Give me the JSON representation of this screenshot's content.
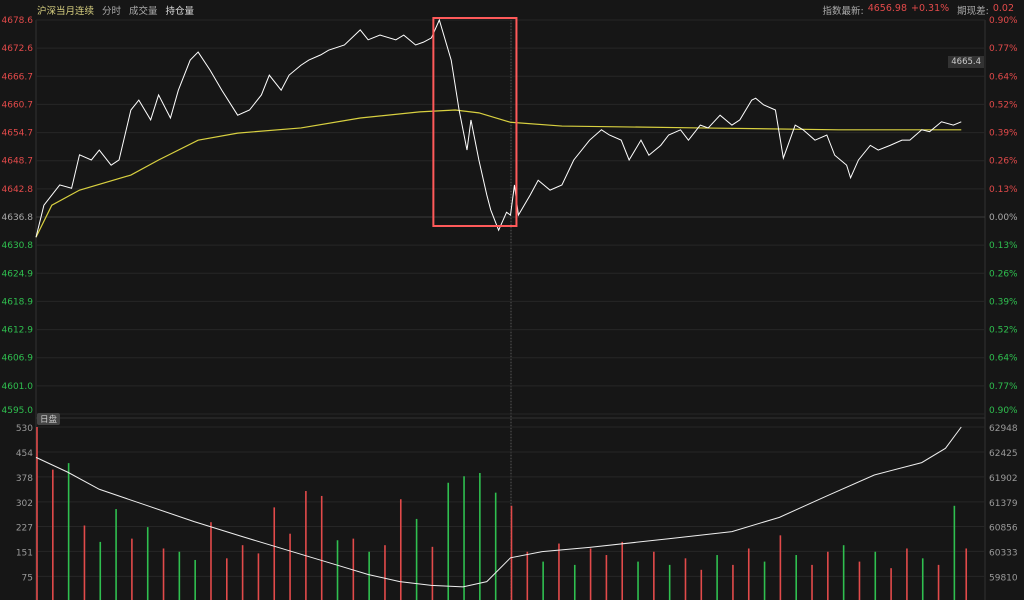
{
  "header": {
    "symbol": "沪深当月连续",
    "tabs": [
      "分时",
      "成交量",
      "持仓量"
    ],
    "active_tab": 2
  },
  "info": {
    "index_label": "指数最新:",
    "index_value": "4656.98",
    "index_change": "+0.31%",
    "basis_label": "期现差:",
    "basis_value": "0.02"
  },
  "crosshair_value": "4665.4",
  "session_tag": "日盘",
  "colors": {
    "up": "#e24a4a",
    "down": "#2fbf4f",
    "price": "#ffffff",
    "avg": "#d8d040",
    "highlight": "#ff5a5a"
  },
  "chart_data": [
    {
      "type": "line",
      "title": "",
      "ylim": [
        4595.0,
        4678.6
      ],
      "prev_close": 4636.8,
      "xlim": [
        0,
        240
      ],
      "left_ticks": [
        "4678.6",
        "4672.6",
        "4666.7",
        "4660.7",
        "4654.7",
        "4648.7",
        "4642.8",
        "4636.8",
        "4630.8",
        "4624.9",
        "4618.9",
        "4612.9",
        "4606.9",
        "4601.0",
        "4595.0"
      ],
      "right_ticks": [
        "0.90%",
        "0.77%",
        "0.64%",
        "0.52%",
        "0.39%",
        "0.26%",
        "0.13%",
        "0.00%",
        "0.13%",
        "0.26%",
        "0.39%",
        "0.52%",
        "0.64%",
        "0.77%",
        "0.90%"
      ],
      "series": [
        {
          "kind": "price",
          "points": [
            [
              0,
              4632.5
            ],
            [
              2,
              4639.3
            ],
            [
              6,
              4643.6
            ],
            [
              9,
              4642.9
            ],
            [
              11,
              4650.0
            ],
            [
              14,
              4648.9
            ],
            [
              16,
              4651.0
            ],
            [
              19,
              4647.8
            ],
            [
              21,
              4648.9
            ],
            [
              24,
              4659.5
            ],
            [
              26,
              4661.6
            ],
            [
              29,
              4657.4
            ],
            [
              31,
              4662.7
            ],
            [
              34,
              4657.8
            ],
            [
              36,
              4663.7
            ],
            [
              39,
              4670.1
            ],
            [
              41,
              4671.8
            ],
            [
              44,
              4668.0
            ],
            [
              47,
              4663.7
            ],
            [
              51,
              4658.4
            ],
            [
              54,
              4659.5
            ],
            [
              57,
              4662.7
            ],
            [
              59,
              4666.9
            ],
            [
              62,
              4663.7
            ],
            [
              64,
              4666.9
            ],
            [
              67,
              4669.0
            ],
            [
              69,
              4670.1
            ],
            [
              72,
              4671.2
            ],
            [
              74,
              4672.2
            ],
            [
              78,
              4673.3
            ],
            [
              82,
              4676.5
            ],
            [
              84,
              4674.4
            ],
            [
              87,
              4675.4
            ],
            [
              91,
              4674.4
            ],
            [
              93,
              4675.4
            ],
            [
              96,
              4673.3
            ],
            [
              98,
              4673.9
            ],
            [
              100,
              4674.8
            ],
            [
              102,
              4678.6
            ],
            [
              105,
              4670.1
            ],
            [
              107,
              4659.5
            ],
            [
              109,
              4651.0
            ],
            [
              110,
              4657.4
            ],
            [
              112,
              4648.9
            ],
            [
              114,
              4641.5
            ],
            [
              115,
              4638.3
            ],
            [
              117,
              4634.0
            ],
            [
              119,
              4637.8
            ],
            [
              120,
              4637.2
            ],
            [
              121,
              4643.6
            ],
            [
              122,
              4637.2
            ],
            [
              125,
              4641.5
            ],
            [
              127,
              4644.6
            ],
            [
              130,
              4642.5
            ],
            [
              133,
              4643.6
            ],
            [
              136,
              4648.9
            ],
            [
              140,
              4653.1
            ],
            [
              143,
              4655.3
            ],
            [
              145,
              4654.2
            ],
            [
              148,
              4653.1
            ],
            [
              150,
              4648.9
            ],
            [
              153,
              4653.1
            ],
            [
              155,
              4649.9
            ],
            [
              158,
              4652.0
            ],
            [
              160,
              4654.2
            ],
            [
              163,
              4655.3
            ],
            [
              165,
              4653.1
            ],
            [
              168,
              4656.3
            ],
            [
              170,
              4655.7
            ],
            [
              173,
              4658.4
            ],
            [
              176,
              4656.3
            ],
            [
              178,
              4657.4
            ],
            [
              181,
              4661.6
            ],
            [
              182,
              4662.0
            ],
            [
              184,
              4660.6
            ],
            [
              187,
              4659.5
            ],
            [
              189,
              4649.3
            ],
            [
              192,
              4656.3
            ],
            [
              194,
              4655.3
            ],
            [
              197,
              4653.1
            ],
            [
              200,
              4654.2
            ],
            [
              202,
              4649.9
            ],
            [
              205,
              4647.8
            ],
            [
              206,
              4645.1
            ],
            [
              208,
              4648.9
            ],
            [
              211,
              4652.0
            ],
            [
              213,
              4651.0
            ],
            [
              216,
              4652.0
            ],
            [
              219,
              4653.1
            ],
            [
              221,
              4653.1
            ],
            [
              224,
              4655.3
            ],
            [
              226,
              4654.9
            ],
            [
              229,
              4657.0
            ],
            [
              232,
              4656.3
            ],
            [
              234,
              4657.0
            ]
          ]
        },
        {
          "kind": "average",
          "points": [
            [
              0,
              4632.5
            ],
            [
              4,
              4639.3
            ],
            [
              11,
              4642.5
            ],
            [
              24,
              4645.7
            ],
            [
              31,
              4648.9
            ],
            [
              41,
              4653.1
            ],
            [
              51,
              4654.6
            ],
            [
              67,
              4655.7
            ],
            [
              82,
              4657.8
            ],
            [
              97,
              4659.1
            ],
            [
              106,
              4659.5
            ],
            [
              112,
              4658.9
            ],
            [
              120,
              4656.9
            ],
            [
              133,
              4656.1
            ],
            [
              168,
              4655.7
            ],
            [
              203,
              4655.3
            ],
            [
              234,
              4655.3
            ]
          ]
        }
      ],
      "highlight_range": [
        101,
        121
      ]
    },
    {
      "type": "bar",
      "title": "",
      "ylim": [
        0,
        530
      ],
      "left_ticks": [
        "530",
        "454",
        "378",
        "302",
        "227",
        "151",
        "75"
      ],
      "right_ticks": [
        "62948",
        "62425",
        "61902",
        "61379",
        "60856",
        "60333",
        "59810"
      ],
      "volume": [
        [
          0,
          530,
          "r"
        ],
        [
          4,
          400,
          "r"
        ],
        [
          8,
          420,
          "g"
        ],
        [
          12,
          230,
          "r"
        ],
        [
          16,
          180,
          "g"
        ],
        [
          20,
          280,
          "g"
        ],
        [
          24,
          190,
          "r"
        ],
        [
          28,
          225,
          "g"
        ],
        [
          32,
          160,
          "r"
        ],
        [
          36,
          150,
          "g"
        ],
        [
          40,
          125,
          "g"
        ],
        [
          44,
          240,
          "r"
        ],
        [
          48,
          130,
          "r"
        ],
        [
          52,
          170,
          "r"
        ],
        [
          56,
          145,
          "r"
        ],
        [
          60,
          285,
          "r"
        ],
        [
          64,
          205,
          "r"
        ],
        [
          68,
          335,
          "r"
        ],
        [
          72,
          320,
          "r"
        ],
        [
          76,
          185,
          "g"
        ],
        [
          80,
          190,
          "r"
        ],
        [
          84,
          150,
          "g"
        ],
        [
          88,
          170,
          "r"
        ],
        [
          92,
          310,
          "r"
        ],
        [
          96,
          250,
          "g"
        ],
        [
          100,
          165,
          "r"
        ],
        [
          104,
          360,
          "g"
        ],
        [
          108,
          380,
          "g"
        ],
        [
          112,
          390,
          "g"
        ],
        [
          116,
          330,
          "g"
        ],
        [
          120,
          290,
          "r"
        ],
        [
          124,
          150,
          "r"
        ],
        [
          128,
          120,
          "g"
        ],
        [
          132,
          175,
          "r"
        ],
        [
          136,
          110,
          "g"
        ],
        [
          140,
          160,
          "r"
        ],
        [
          144,
          140,
          "r"
        ],
        [
          148,
          180,
          "r"
        ],
        [
          152,
          120,
          "g"
        ],
        [
          156,
          150,
          "r"
        ],
        [
          160,
          110,
          "g"
        ],
        [
          164,
          130,
          "r"
        ],
        [
          168,
          95,
          "r"
        ],
        [
          172,
          140,
          "g"
        ],
        [
          176,
          110,
          "r"
        ],
        [
          180,
          160,
          "r"
        ],
        [
          184,
          120,
          "g"
        ],
        [
          188,
          200,
          "r"
        ],
        [
          192,
          140,
          "g"
        ],
        [
          196,
          110,
          "r"
        ],
        [
          200,
          150,
          "r"
        ],
        [
          204,
          170,
          "g"
        ],
        [
          208,
          120,
          "r"
        ],
        [
          212,
          150,
          "g"
        ],
        [
          216,
          100,
          "r"
        ],
        [
          220,
          160,
          "r"
        ],
        [
          224,
          130,
          "g"
        ],
        [
          228,
          110,
          "r"
        ],
        [
          232,
          290,
          "g"
        ],
        [
          235,
          160,
          "r"
        ]
      ],
      "open_interest": [
        [
          0,
          62310
        ],
        [
          8,
          62000
        ],
        [
          16,
          61640
        ],
        [
          28,
          61300
        ],
        [
          40,
          60960
        ],
        [
          52,
          60650
        ],
        [
          64,
          60350
        ],
        [
          76,
          60050
        ],
        [
          84,
          59850
        ],
        [
          92,
          59700
        ],
        [
          100,
          59620
        ],
        [
          108,
          59590
        ],
        [
          114,
          59700
        ],
        [
          120,
          60200
        ],
        [
          128,
          60330
        ],
        [
          140,
          60420
        ],
        [
          160,
          60600
        ],
        [
          176,
          60750
        ],
        [
          188,
          61050
        ],
        [
          200,
          61500
        ],
        [
          212,
          61940
        ],
        [
          224,
          62200
        ],
        [
          230,
          62500
        ],
        [
          234,
          62948
        ]
      ]
    }
  ]
}
